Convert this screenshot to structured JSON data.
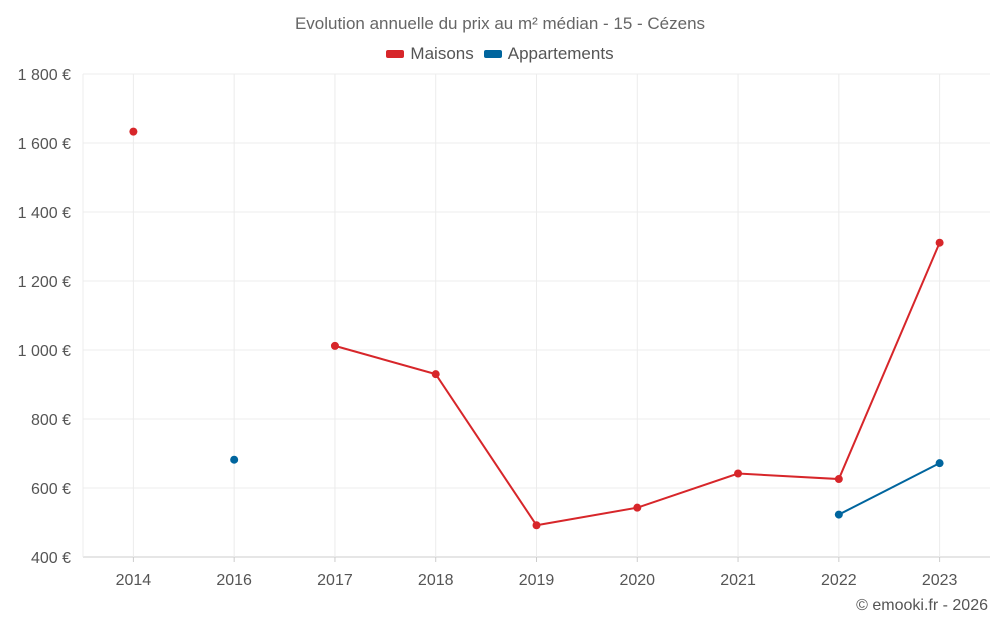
{
  "chart_data": {
    "type": "line",
    "title": "Evolution annuelle du prix au m² médian - 15 - Cézens",
    "categories": [
      "2014",
      "2016",
      "2017",
      "2018",
      "2019",
      "2020",
      "2021",
      "2022",
      "2023"
    ],
    "y_ticks": [
      "400 €",
      "600 €",
      "800 €",
      "1 000 €",
      "1 200 €",
      "1 400 €",
      "1 600 €",
      "1 800 €"
    ],
    "ylim": [
      400,
      1800
    ],
    "grid": true,
    "legend_position": "top-center",
    "series": [
      {
        "name": "Maisons",
        "color": "#d7262a",
        "values": [
          1633,
          null,
          1012,
          930,
          492,
          543,
          642,
          626,
          1311
        ]
      },
      {
        "name": "Appartements",
        "color": "#00659e",
        "values": [
          null,
          682,
          null,
          null,
          null,
          null,
          null,
          523,
          672
        ]
      }
    ]
  },
  "credit": "© emooki.fr - 2026"
}
